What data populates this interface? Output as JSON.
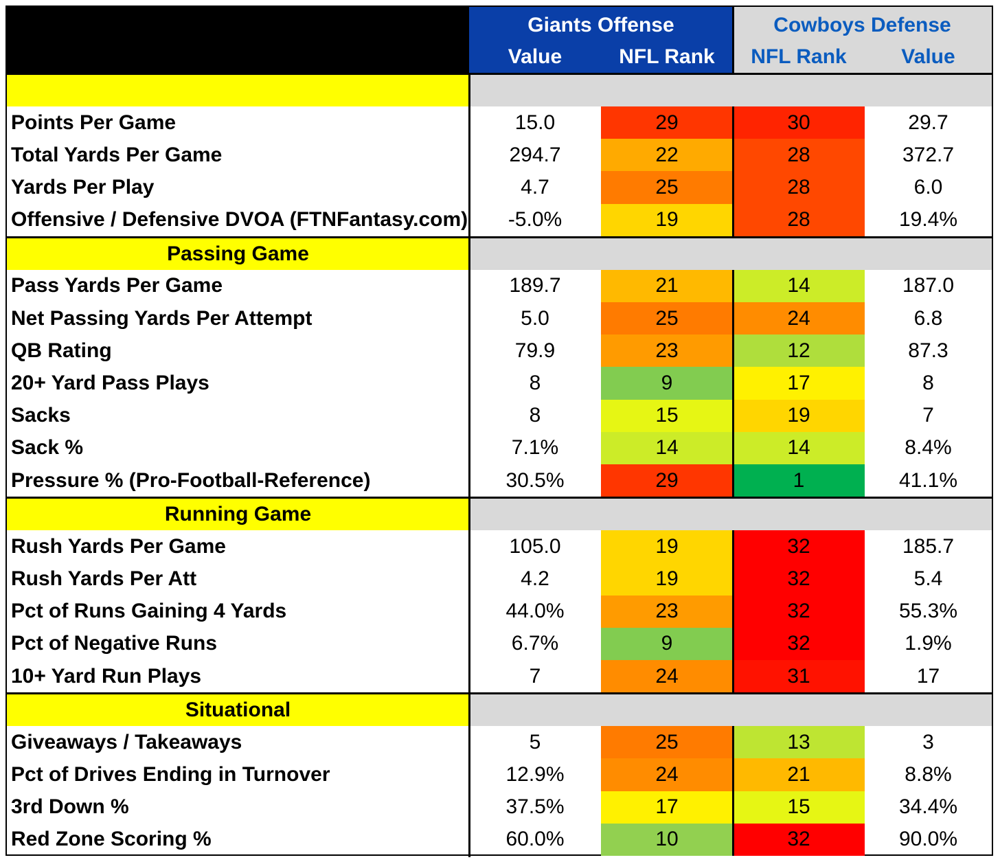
{
  "chart_data": {
    "type": "table",
    "header": {
      "left_group": "Giants Offense",
      "right_group": "Cowboys Defense",
      "columns": [
        "Value",
        "NFL Rank",
        "NFL Rank",
        "Value"
      ]
    },
    "sections": [
      {
        "title": "",
        "rows": [
          {
            "label": "Points Per Game",
            "off_value": "15.0",
            "off_rank": 29,
            "def_rank": 30,
            "def_value": "29.7"
          },
          {
            "label": "Total Yards Per Game",
            "off_value": "294.7",
            "off_rank": 22,
            "def_rank": 28,
            "def_value": "372.7"
          },
          {
            "label": "Yards Per Play",
            "off_value": "4.7",
            "off_rank": 25,
            "def_rank": 28,
            "def_value": "6.0"
          },
          {
            "label": "Offensive / Defensive DVOA (FTNFantasy.com)",
            "off_value": "-5.0%",
            "off_rank": 19,
            "def_rank": 28,
            "def_value": "19.4%"
          }
        ]
      },
      {
        "title": "Passing Game",
        "rows": [
          {
            "label": "Pass Yards Per Game",
            "off_value": "189.7",
            "off_rank": 21,
            "def_rank": 14,
            "def_value": "187.0"
          },
          {
            "label": "Net Passing Yards Per Attempt",
            "off_value": "5.0",
            "off_rank": 25,
            "def_rank": 24,
            "def_value": "6.8"
          },
          {
            "label": "QB Rating",
            "off_value": "79.9",
            "off_rank": 23,
            "def_rank": 12,
            "def_value": "87.3"
          },
          {
            "label": "20+ Yard Pass Plays",
            "off_value": "8",
            "off_rank": 9,
            "def_rank": 17,
            "def_value": "8"
          },
          {
            "label": "Sacks",
            "off_value": "8",
            "off_rank": 15,
            "def_rank": 19,
            "def_value": "7"
          },
          {
            "label": "Sack %",
            "off_value": "7.1%",
            "off_rank": 14,
            "def_rank": 14,
            "def_value": "8.4%"
          },
          {
            "label": "Pressure % (Pro-Football-Reference)",
            "off_value": "30.5%",
            "off_rank": 29,
            "def_rank": 1,
            "def_value": "41.1%"
          }
        ]
      },
      {
        "title": "Running Game",
        "rows": [
          {
            "label": "Rush Yards Per Game",
            "off_value": "105.0",
            "off_rank": 19,
            "def_rank": 32,
            "def_value": "185.7"
          },
          {
            "label": "Rush Yards Per Att",
            "off_value": "4.2",
            "off_rank": 19,
            "def_rank": 32,
            "def_value": "5.4"
          },
          {
            "label": "Pct of Runs Gaining 4 Yards",
            "off_value": "44.0%",
            "off_rank": 23,
            "def_rank": 32,
            "def_value": "55.3%"
          },
          {
            "label": "Pct of Negative Runs",
            "off_value": "6.7%",
            "off_rank": 9,
            "def_rank": 32,
            "def_value": "1.9%"
          },
          {
            "label": "10+ Yard Run Plays",
            "off_value": "7",
            "off_rank": 24,
            "def_rank": 31,
            "def_value": "17"
          }
        ]
      },
      {
        "title": "Situational",
        "rows": [
          {
            "label": "Giveaways / Takeaways",
            "off_value": "5",
            "off_rank": 25,
            "def_rank": 13,
            "def_value": "3"
          },
          {
            "label": "Pct of Drives Ending in Turnover",
            "off_value": "12.9%",
            "off_rank": 24,
            "def_rank": 21,
            "def_value": "8.8%"
          },
          {
            "label": "3rd Down %",
            "off_value": "37.5%",
            "off_rank": 17,
            "def_rank": 15,
            "def_value": "34.4%"
          },
          {
            "label": "Red Zone Scoring %",
            "off_value": "60.0%",
            "off_rank": 10,
            "def_rank": 32,
            "def_value": "90.0%"
          }
        ]
      }
    ]
  },
  "colors": {
    "header_blue": "#0a3fa8",
    "header_gray": "#d9d9d9",
    "header_blue_text": "#0b5cbf",
    "section_yellow": "#ffff00",
    "rank_scale": [
      "#00b050",
      "#92d050",
      "#ffff00",
      "#ffc000",
      "#ff7f00",
      "#ff0000"
    ]
  }
}
